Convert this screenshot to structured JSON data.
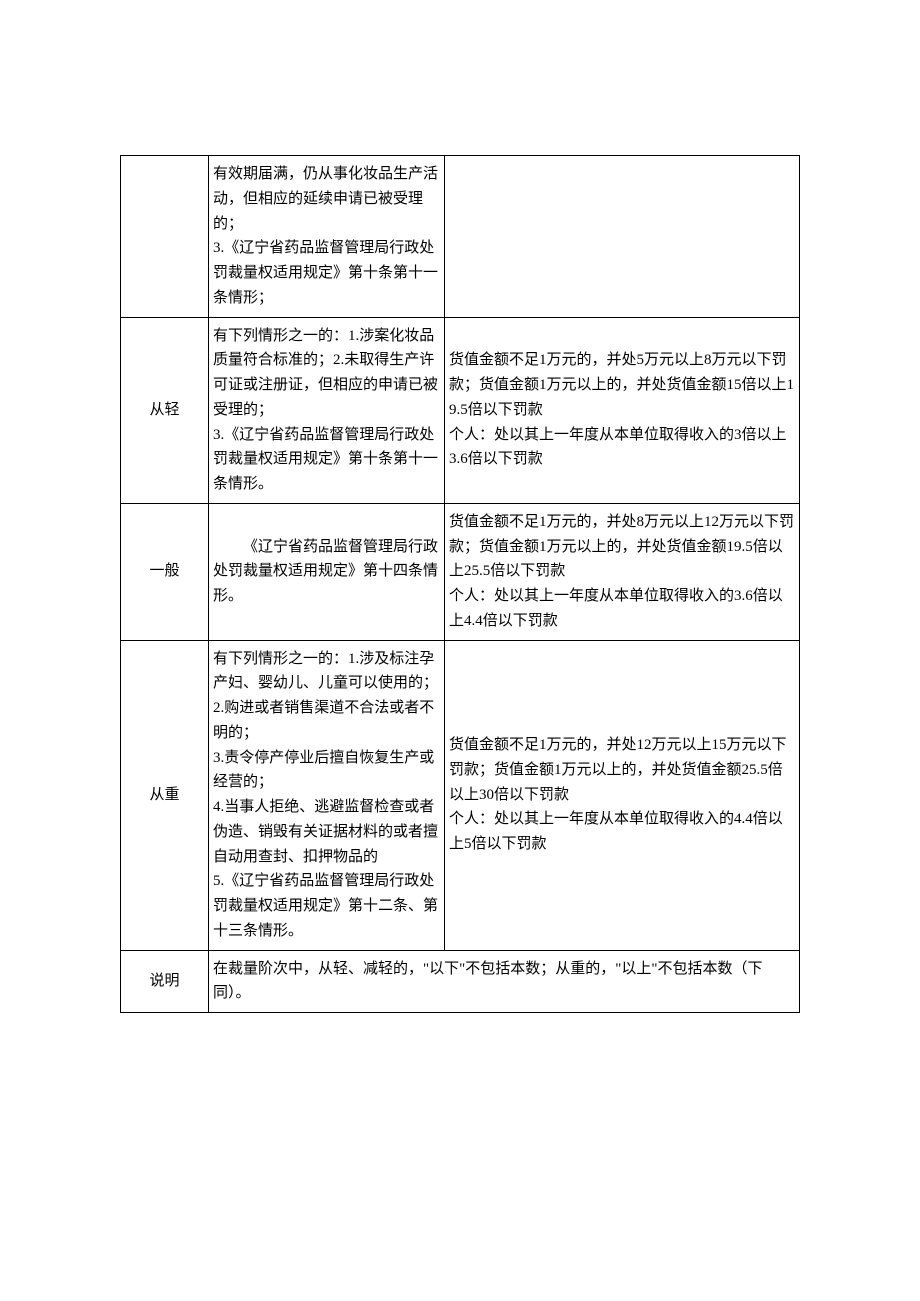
{
  "table": {
    "rows": [
      {
        "col1": "",
        "col2": "有效期届满，仍从事化妆品生产活动，但相应的延续申请已被受理的；\n3.《辽宁省药品监督管理局行政处罚裁量权适用规定》第十条第十一条情形；",
        "col3": ""
      },
      {
        "col1": "从轻",
        "col2": "有下列情形之一的：1.涉案化妆品质量符合标准的；2.未取得生产许可证或注册证，但相应的申请已被受理的；\n3.《辽宁省药品监督管理局行政处罚裁量权适用规定》第十条第十一条情形。",
        "col3": "货值金额不足1万元的，并处5万元以上8万元以下罚款；货值金额1万元以上的，并处货值金额15倍以上19.5倍以下罚款\n个人：处以其上一年度从本单位取得收入的3倍以上3.6倍以下罚款"
      },
      {
        "col1": "一般",
        "col2_indent": "《辽宁省药品监督管理局行政处罚裁量权适用规定》第十四条情形。",
        "col3": "货值金额不足1万元的，并处8万元以上12万元以下罚款；货值金额1万元以上的，并处货值金额19.5倍以上25.5倍以下罚款\n个人：处以其上一年度从本单位取得收入的3.6倍以上4.4倍以下罚款"
      },
      {
        "col1": "从重",
        "col2": "有下列情形之一的：1.涉及标注孕产妇、婴幼儿、儿童可以使用的；\n2.购进或者销售渠道不合法或者不明的；\n3.责令停产停业后擅自恢复生产或经营的；\n4.当事人拒绝、逃避监督检查或者伪造、销毁有关证据材料的或者擅自动用查封、扣押物品的\n5.《辽宁省药品监督管理局行政处罚裁量权适用规定》第十二条、第十三条情形。",
        "col3": "货值金额不足1万元的，并处12万元以上15万元以下罚款；货值金额1万元以上的，并处货值金额25.5倍以上30倍以下罚款\n个人：处以其上一年度从本单位取得收入的4.4倍以上5倍以下罚款"
      },
      {
        "col1": "说明",
        "merged23": "在裁量阶次中，从轻、减轻的，\"以下\"不包括本数；从重的，\"以上\"不包括本数（下同）。"
      }
    ]
  },
  "styling": {
    "body_bg": "#ffffff",
    "text_color": "#000000",
    "border_color": "#000000",
    "font_size": 15,
    "line_height": 1.65,
    "col1_width": 88,
    "col2_width": 236
  }
}
